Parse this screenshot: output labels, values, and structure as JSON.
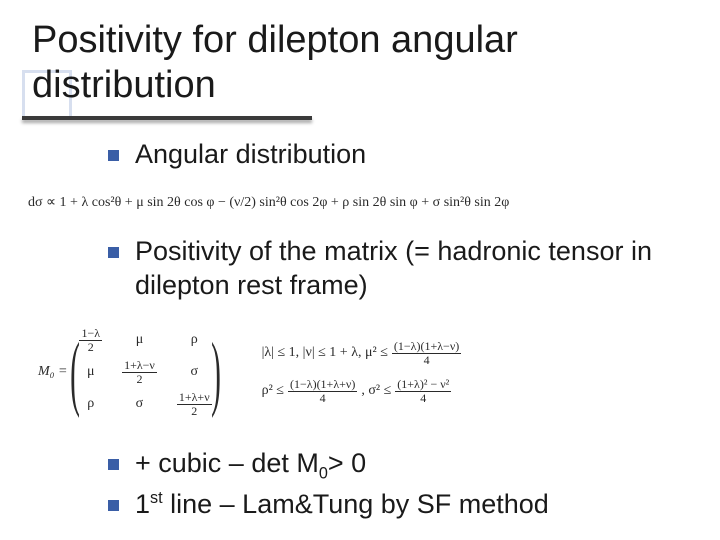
{
  "title": "Positivity for dilepton angular distribution",
  "bullets": {
    "b1": "Angular distribution",
    "b2": "Positivity of the matrix (= hadronic tensor in dilepton rest frame)"
  },
  "formula_long": "dσ ∝ 1 + λ cos²θ + μ sin 2θ cos φ − (ν/2) sin²θ cos 2φ + ρ sin 2θ sin φ + σ sin²θ sin 2φ",
  "matrix": {
    "label": "M₀ =",
    "cells": {
      "a11_num": "1−λ",
      "a11_den": "2",
      "a12": "μ",
      "a13": "ρ",
      "a21": "μ",
      "a22_num": "1+λ−ν",
      "a22_den": "2",
      "a23": "σ",
      "a31": "ρ",
      "a32": "σ",
      "a33_num": "1+λ+ν",
      "a33_den": "2"
    }
  },
  "inequalities": {
    "line1_a": "|λ| ≤ 1,  |ν| ≤ 1 + λ,  μ² ≤",
    "line1_frac_num": "(1−λ)(1+λ−ν)",
    "line1_frac_den": "4",
    "line2_a": "ρ² ≤",
    "line2_frac1_num": "(1−λ)(1+λ+ν)",
    "line2_frac1_den": "4",
    "line2_b": ",  σ² ≤",
    "line2_frac2_num": "(1+λ)² − ν²",
    "line2_frac2_den": "4"
  },
  "bottom": {
    "b3a": "+ cubic – det M",
    "b3b": "> 0",
    "b3_sub": "0",
    "b4a": "1",
    "b4b": " line – Lam&Tung  by SF method",
    "b4_sup": "st"
  },
  "colors": {
    "bullet": "#3a5ea6",
    "accent_border": "#d7dfef",
    "underline": "#3a3a3a",
    "text": "#1a1a1a",
    "formula": "#2a2a2a"
  }
}
